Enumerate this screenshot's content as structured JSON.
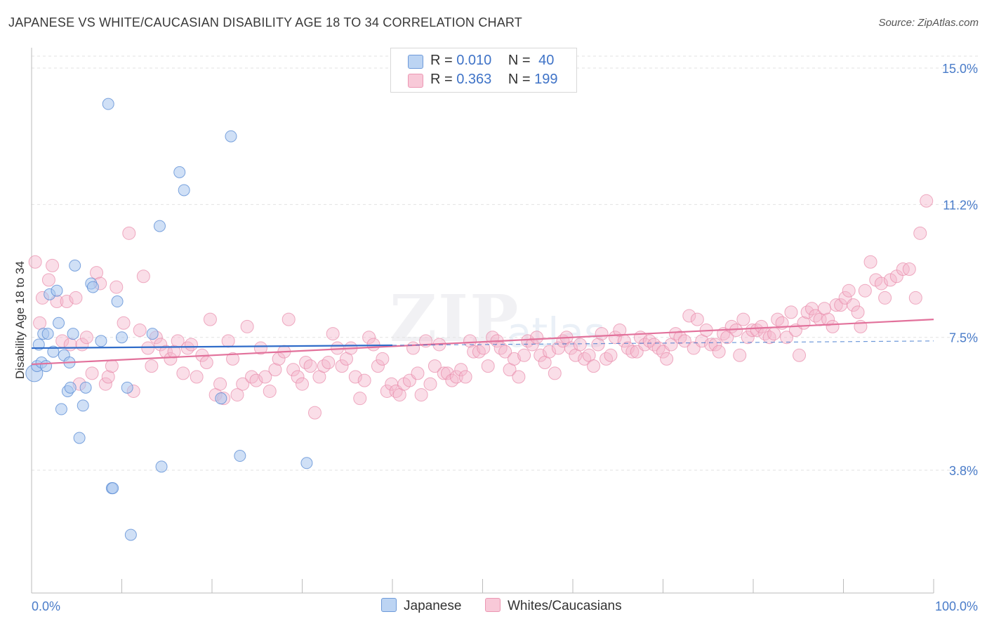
{
  "title": "JAPANESE VS WHITE/CAUCASIAN DISABILITY AGE 18 TO 34 CORRELATION CHART",
  "source": "Source: ZipAtlas.com",
  "watermark": {
    "zip": "ZIP",
    "atlas": "atlas"
  },
  "legend": {
    "rows": [
      {
        "r_label": "R = ",
        "r_value": "0.010",
        "n_label": "N = ",
        "n_value": "40"
      },
      {
        "r_label": "R = ",
        "r_value": "0.363",
        "n_label": "N = ",
        "n_value": "199"
      }
    ]
  },
  "bottom_legend": {
    "japanese": "Japanese",
    "whites": "Whites/Caucasians"
  },
  "colors": {
    "japanese_fill": "#a9c7ee",
    "japanese_stroke": "#5e8fd6",
    "japanese_line": "#2f6cc9",
    "whites_fill": "#f4b6cb",
    "whites_stroke": "#e88aa9",
    "whites_line": "#e2719b",
    "tick": "#4a7cc9",
    "grid": "#e2e2e2"
  },
  "chart_data": {
    "type": "scatter",
    "title": "JAPANESE VS WHITE/CAUCASIAN DISABILITY AGE 18 TO 34 CORRELATION CHART",
    "xlabel": "",
    "ylabel": "Disability Age 18 to 34",
    "xlim": [
      0,
      100
    ],
    "ylim": [
      0,
      15.0
    ],
    "x_tick_labels": [
      "0.0%",
      "100.0%"
    ],
    "y_ticks": [
      3.8,
      7.5,
      11.2,
      15.0
    ],
    "y_tick_labels": [
      "3.8%",
      "7.5%",
      "11.2%",
      "15.0%"
    ],
    "grid": true,
    "legend_position": "top-center",
    "series": [
      {
        "name": "Japanese",
        "R": 0.01,
        "N": 40,
        "trend": {
          "x": [
            0,
            40
          ],
          "y": [
            7.2,
            7.28
          ]
        },
        "trend_dashed": {
          "x": [
            40,
            100
          ],
          "y": [
            7.28,
            7.4
          ]
        },
        "points": [
          [
            0.3,
            6.5
          ],
          [
            0.6,
            6.7
          ],
          [
            0.8,
            7.3
          ],
          [
            1.1,
            6.8
          ],
          [
            1.3,
            7.6
          ],
          [
            1.6,
            6.7
          ],
          [
            1.8,
            7.6
          ],
          [
            2.0,
            8.7
          ],
          [
            2.4,
            7.1
          ],
          [
            2.8,
            8.8
          ],
          [
            3.0,
            7.9
          ],
          [
            3.3,
            5.5
          ],
          [
            3.6,
            7.0
          ],
          [
            4.0,
            6.0
          ],
          [
            4.2,
            6.8
          ],
          [
            4.3,
            6.1
          ],
          [
            4.6,
            7.6
          ],
          [
            4.8,
            9.5
          ],
          [
            5.3,
            4.7
          ],
          [
            5.7,
            5.6
          ],
          [
            6.0,
            6.1
          ],
          [
            6.6,
            9.0
          ],
          [
            6.8,
            8.9
          ],
          [
            7.7,
            7.4
          ],
          [
            8.5,
            14.0
          ],
          [
            8.9,
            3.3
          ],
          [
            9.0,
            3.3
          ],
          [
            9.5,
            8.5
          ],
          [
            10.0,
            7.5
          ],
          [
            10.6,
            6.1
          ],
          [
            11.0,
            2.0
          ],
          [
            13.4,
            7.6
          ],
          [
            14.2,
            10.6
          ],
          [
            14.4,
            3.9
          ],
          [
            16.4,
            12.1
          ],
          [
            16.9,
            11.6
          ],
          [
            21.0,
            5.8
          ],
          [
            22.1,
            13.1
          ],
          [
            23.1,
            4.2
          ],
          [
            30.5,
            4.0
          ]
        ]
      },
      {
        "name": "Whites/Caucasians",
        "R": 0.363,
        "N": 199,
        "trend": {
          "x": [
            0,
            100
          ],
          "y": [
            6.75,
            8.0
          ]
        },
        "points": [
          [
            0.4,
            9.6
          ],
          [
            0.9,
            7.9
          ],
          [
            1.2,
            8.6
          ],
          [
            1.9,
            9.1
          ],
          [
            2.3,
            9.5
          ],
          [
            2.8,
            8.5
          ],
          [
            3.4,
            7.4
          ],
          [
            3.9,
            8.5
          ],
          [
            4.3,
            7.3
          ],
          [
            4.9,
            8.6
          ],
          [
            5.3,
            6.2
          ],
          [
            5.6,
            7.3
          ],
          [
            6.1,
            7.5
          ],
          [
            6.7,
            6.5
          ],
          [
            7.2,
            9.3
          ],
          [
            7.6,
            9.0
          ],
          [
            8.2,
            6.2
          ],
          [
            8.5,
            6.4
          ],
          [
            8.9,
            6.7
          ],
          [
            9.4,
            8.9
          ],
          [
            10.2,
            7.9
          ],
          [
            10.8,
            10.4
          ],
          [
            11.3,
            6.0
          ],
          [
            12.0,
            7.7
          ],
          [
            12.4,
            9.2
          ],
          [
            12.9,
            7.2
          ],
          [
            13.3,
            6.7
          ],
          [
            13.8,
            7.5
          ],
          [
            14.3,
            7.3
          ],
          [
            14.9,
            7.1
          ],
          [
            15.4,
            6.9
          ],
          [
            15.8,
            7.1
          ],
          [
            16.2,
            7.4
          ],
          [
            16.8,
            6.5
          ],
          [
            17.3,
            7.2
          ],
          [
            17.7,
            7.3
          ],
          [
            18.3,
            6.4
          ],
          [
            18.9,
            7.0
          ],
          [
            19.4,
            6.8
          ],
          [
            19.8,
            8.0
          ],
          [
            20.4,
            5.9
          ],
          [
            20.9,
            6.2
          ],
          [
            21.3,
            5.8
          ],
          [
            21.8,
            7.4
          ],
          [
            22.3,
            6.9
          ],
          [
            22.8,
            5.9
          ],
          [
            23.4,
            6.2
          ],
          [
            23.9,
            7.8
          ],
          [
            24.4,
            6.4
          ],
          [
            24.9,
            6.3
          ],
          [
            25.4,
            7.2
          ],
          [
            25.9,
            6.4
          ],
          [
            26.4,
            6.0
          ],
          [
            27.0,
            6.6
          ],
          [
            27.4,
            6.9
          ],
          [
            28.0,
            7.1
          ],
          [
            28.5,
            8.0
          ],
          [
            29.0,
            6.6
          ],
          [
            29.5,
            6.4
          ],
          [
            30.0,
            6.2
          ],
          [
            30.4,
            6.8
          ],
          [
            30.9,
            6.7
          ],
          [
            31.4,
            5.4
          ],
          [
            31.9,
            6.4
          ],
          [
            32.4,
            6.7
          ],
          [
            32.9,
            6.8
          ],
          [
            33.4,
            7.6
          ],
          [
            33.9,
            7.2
          ],
          [
            34.4,
            6.7
          ],
          [
            34.9,
            6.9
          ],
          [
            35.4,
            7.2
          ],
          [
            35.9,
            6.4
          ],
          [
            36.4,
            5.8
          ],
          [
            36.9,
            6.3
          ],
          [
            37.4,
            7.5
          ],
          [
            37.9,
            7.3
          ],
          [
            38.4,
            6.7
          ],
          [
            38.9,
            6.9
          ],
          [
            39.4,
            6.0
          ],
          [
            39.9,
            6.2
          ],
          [
            40.4,
            6.0
          ],
          [
            40.8,
            5.9
          ],
          [
            41.3,
            6.2
          ],
          [
            41.9,
            6.3
          ],
          [
            42.3,
            7.2
          ],
          [
            42.8,
            6.5
          ],
          [
            43.2,
            5.9
          ],
          [
            43.7,
            7.4
          ],
          [
            44.2,
            6.2
          ],
          [
            44.7,
            6.7
          ],
          [
            45.2,
            7.3
          ],
          [
            45.7,
            6.5
          ],
          [
            46.1,
            6.5
          ],
          [
            46.6,
            6.3
          ],
          [
            47.1,
            6.4
          ],
          [
            47.6,
            6.6
          ],
          [
            48.1,
            6.4
          ],
          [
            48.6,
            7.4
          ],
          [
            49.0,
            7.1
          ],
          [
            49.6,
            7.1
          ],
          [
            50.1,
            7.2
          ],
          [
            50.6,
            6.7
          ],
          [
            51.1,
            7.5
          ],
          [
            51.6,
            7.4
          ],
          [
            52.0,
            7.2
          ],
          [
            52.5,
            7.1
          ],
          [
            53.0,
            6.6
          ],
          [
            53.5,
            6.9
          ],
          [
            54.0,
            6.4
          ],
          [
            54.6,
            7.0
          ],
          [
            55.0,
            7.4
          ],
          [
            55.5,
            7.3
          ],
          [
            56.0,
            7.5
          ],
          [
            56.4,
            7.0
          ],
          [
            56.9,
            6.8
          ],
          [
            57.4,
            7.1
          ],
          [
            58.0,
            6.5
          ],
          [
            58.4,
            7.2
          ],
          [
            58.9,
            7.4
          ],
          [
            59.3,
            7.5
          ],
          [
            59.8,
            7.2
          ],
          [
            60.3,
            7.0
          ],
          [
            60.8,
            7.3
          ],
          [
            61.3,
            6.9
          ],
          [
            61.8,
            7.0
          ],
          [
            62.3,
            6.7
          ],
          [
            62.8,
            7.3
          ],
          [
            63.2,
            7.6
          ],
          [
            63.7,
            6.9
          ],
          [
            64.2,
            7.0
          ],
          [
            64.7,
            7.5
          ],
          [
            65.2,
            7.7
          ],
          [
            65.7,
            7.4
          ],
          [
            66.1,
            7.2
          ],
          [
            66.6,
            7.1
          ],
          [
            67.1,
            7.1
          ],
          [
            67.5,
            7.5
          ],
          [
            68.0,
            7.3
          ],
          [
            68.5,
            7.4
          ],
          [
            69.0,
            7.3
          ],
          [
            69.5,
            7.2
          ],
          [
            70.0,
            7.1
          ],
          [
            70.4,
            6.9
          ],
          [
            70.9,
            7.3
          ],
          [
            71.4,
            7.6
          ],
          [
            71.9,
            7.5
          ],
          [
            72.4,
            7.4
          ],
          [
            72.9,
            8.1
          ],
          [
            73.4,
            7.2
          ],
          [
            73.8,
            8.0
          ],
          [
            74.3,
            7.4
          ],
          [
            74.8,
            7.7
          ],
          [
            75.3,
            7.3
          ],
          [
            75.8,
            7.3
          ],
          [
            76.2,
            7.1
          ],
          [
            76.7,
            7.6
          ],
          [
            77.1,
            7.5
          ],
          [
            77.6,
            7.8
          ],
          [
            78.1,
            7.7
          ],
          [
            78.5,
            7.0
          ],
          [
            78.9,
            8.0
          ],
          [
            79.4,
            7.5
          ],
          [
            79.9,
            7.7
          ],
          [
            80.4,
            7.7
          ],
          [
            80.9,
            7.8
          ],
          [
            81.3,
            7.6
          ],
          [
            81.8,
            7.5
          ],
          [
            82.3,
            7.6
          ],
          [
            82.7,
            8.0
          ],
          [
            83.2,
            7.9
          ],
          [
            83.7,
            7.5
          ],
          [
            84.2,
            8.2
          ],
          [
            84.7,
            7.7
          ],
          [
            85.1,
            7.0
          ],
          [
            85.6,
            7.9
          ],
          [
            86.0,
            8.2
          ],
          [
            86.5,
            8.3
          ],
          [
            86.9,
            8.1
          ],
          [
            87.4,
            8.0
          ],
          [
            87.9,
            8.3
          ],
          [
            88.3,
            8.0
          ],
          [
            88.8,
            7.8
          ],
          [
            89.2,
            8.4
          ],
          [
            89.7,
            8.4
          ],
          [
            90.2,
            8.6
          ],
          [
            90.6,
            8.8
          ],
          [
            91.1,
            8.4
          ],
          [
            91.6,
            8.2
          ],
          [
            91.9,
            7.8
          ],
          [
            92.4,
            8.8
          ],
          [
            93.0,
            9.6
          ],
          [
            93.6,
            9.1
          ],
          [
            94.2,
            9.0
          ],
          [
            94.6,
            8.6
          ],
          [
            95.2,
            9.1
          ],
          [
            95.9,
            9.2
          ],
          [
            96.6,
            9.4
          ],
          [
            97.3,
            9.4
          ],
          [
            98.0,
            8.6
          ],
          [
            98.5,
            10.4
          ],
          [
            99.2,
            11.3
          ]
        ]
      }
    ]
  }
}
